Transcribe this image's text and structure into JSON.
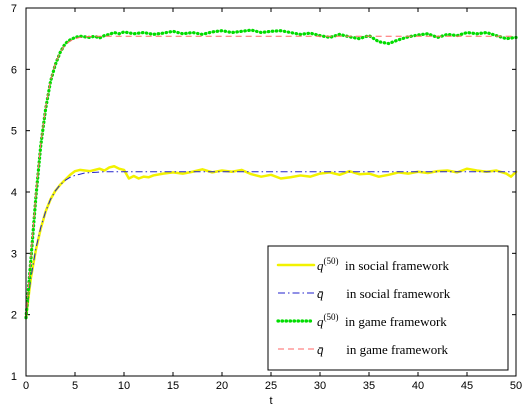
{
  "chart_data": {
    "type": "line",
    "xlabel": "t",
    "ylabel": "",
    "xlim": [
      0,
      50
    ],
    "ylim": [
      1,
      7
    ],
    "xticks": [
      0,
      5,
      10,
      15,
      20,
      25,
      30,
      35,
      40,
      45,
      50
    ],
    "yticks": [
      1,
      2,
      3,
      4,
      5,
      6,
      7
    ],
    "grid": false,
    "legend_position": "bottom-right",
    "series": [
      {
        "name": "q^(50) in social framework",
        "color": "#f2f200",
        "style": "solid-thick",
        "x": [
          0,
          0.5,
          1,
          1.5,
          2,
          2.5,
          3,
          3.5,
          4,
          4.5,
          5,
          5.5,
          6,
          6.5,
          7,
          7.5,
          8,
          8.5,
          9,
          9.5,
          10,
          10.5,
          11,
          11.5,
          12,
          12.5,
          13,
          14,
          15,
          16,
          17,
          18,
          19,
          20,
          21,
          22,
          23,
          24,
          25,
          26,
          27,
          28,
          29,
          30,
          31,
          32,
          33,
          34,
          35,
          36,
          37,
          38,
          39,
          40,
          41,
          42,
          43,
          44,
          45,
          46,
          47,
          48,
          49,
          49.5,
          50
        ],
        "y": [
          1.95,
          2.6,
          3.05,
          3.4,
          3.68,
          3.88,
          4.02,
          4.12,
          4.2,
          4.28,
          4.34,
          4.36,
          4.35,
          4.34,
          4.36,
          4.38,
          4.35,
          4.4,
          4.42,
          4.38,
          4.36,
          4.22,
          4.26,
          4.22,
          4.25,
          4.24,
          4.27,
          4.3,
          4.32,
          4.3,
          4.33,
          4.37,
          4.32,
          4.35,
          4.33,
          4.36,
          4.29,
          4.25,
          4.28,
          4.22,
          4.24,
          4.27,
          4.25,
          4.3,
          4.32,
          4.28,
          4.34,
          4.29,
          4.3,
          4.25,
          4.28,
          4.32,
          4.3,
          4.33,
          4.31,
          4.34,
          4.35,
          4.32,
          4.38,
          4.35,
          4.33,
          4.35,
          4.3,
          4.25,
          4.33
        ]
      },
      {
        "name": "q̄ in social framework",
        "color": "#2222cc",
        "style": "dashdot",
        "x": [
          0,
          0.5,
          1,
          1.5,
          2,
          2.5,
          3,
          3.5,
          4,
          4.5,
          5,
          5.5,
          6,
          7,
          8,
          10,
          20,
          30,
          40,
          50
        ],
        "y": [
          1.95,
          2.6,
          3.07,
          3.42,
          3.68,
          3.88,
          4.02,
          4.12,
          4.19,
          4.24,
          4.27,
          4.29,
          4.31,
          4.32,
          4.33,
          4.33,
          4.33,
          4.33,
          4.33,
          4.33
        ]
      },
      {
        "name": "q^(50) in game framework",
        "color": "#00dd00",
        "style": "dotted-thick",
        "x": [
          0,
          0.5,
          1,
          1.5,
          2,
          2.5,
          3,
          3.5,
          4,
          4.5,
          5,
          5.5,
          6,
          6.5,
          7,
          7.5,
          8,
          8.5,
          9,
          9.5,
          10,
          11,
          12,
          13,
          14,
          15,
          16,
          17,
          18,
          19,
          20,
          21,
          22,
          23,
          24,
          25,
          26,
          27,
          28,
          29,
          30,
          31,
          32,
          33,
          34,
          35,
          36,
          37,
          38,
          39,
          40,
          41,
          42,
          43,
          44,
          45,
          46,
          47,
          48,
          49,
          50
        ],
        "y": [
          1.95,
          2.9,
          3.9,
          4.75,
          5.35,
          5.8,
          6.08,
          6.28,
          6.42,
          6.48,
          6.52,
          6.54,
          6.53,
          6.52,
          6.54,
          6.51,
          6.55,
          6.57,
          6.6,
          6.58,
          6.61,
          6.58,
          6.6,
          6.57,
          6.59,
          6.62,
          6.58,
          6.6,
          6.57,
          6.61,
          6.63,
          6.6,
          6.62,
          6.64,
          6.6,
          6.62,
          6.63,
          6.6,
          6.57,
          6.59,
          6.55,
          6.52,
          6.57,
          6.53,
          6.5,
          6.55,
          6.45,
          6.42,
          6.48,
          6.53,
          6.56,
          6.58,
          6.52,
          6.57,
          6.55,
          6.6,
          6.58,
          6.6,
          6.55,
          6.5,
          6.52
        ]
      },
      {
        "name": "q̄ in game framework",
        "color": "#ff6666",
        "style": "dashed",
        "x": [
          0,
          0.5,
          1,
          1.5,
          2,
          2.5,
          3,
          3.5,
          4,
          4.5,
          5,
          5.5,
          6,
          7,
          8,
          10,
          20,
          30,
          40,
          50
        ],
        "y": [
          1.95,
          2.95,
          3.95,
          4.78,
          5.38,
          5.82,
          6.1,
          6.28,
          6.4,
          6.46,
          6.5,
          6.52,
          6.53,
          6.54,
          6.54,
          6.54,
          6.54,
          6.54,
          6.54,
          6.54
        ]
      }
    ]
  },
  "legend": [
    {
      "symbol": "q",
      "sup": "(50)",
      "gap": "",
      "text": "in social framework"
    },
    {
      "symbol": "q̄",
      "sup": "",
      "gap": "     ",
      "text": "in social framework"
    },
    {
      "symbol": "q",
      "sup": "(50)",
      "gap": "",
      "text": "in game framework"
    },
    {
      "symbol": "q̄",
      "sup": "",
      "gap": "     ",
      "text": "in game framework"
    }
  ]
}
